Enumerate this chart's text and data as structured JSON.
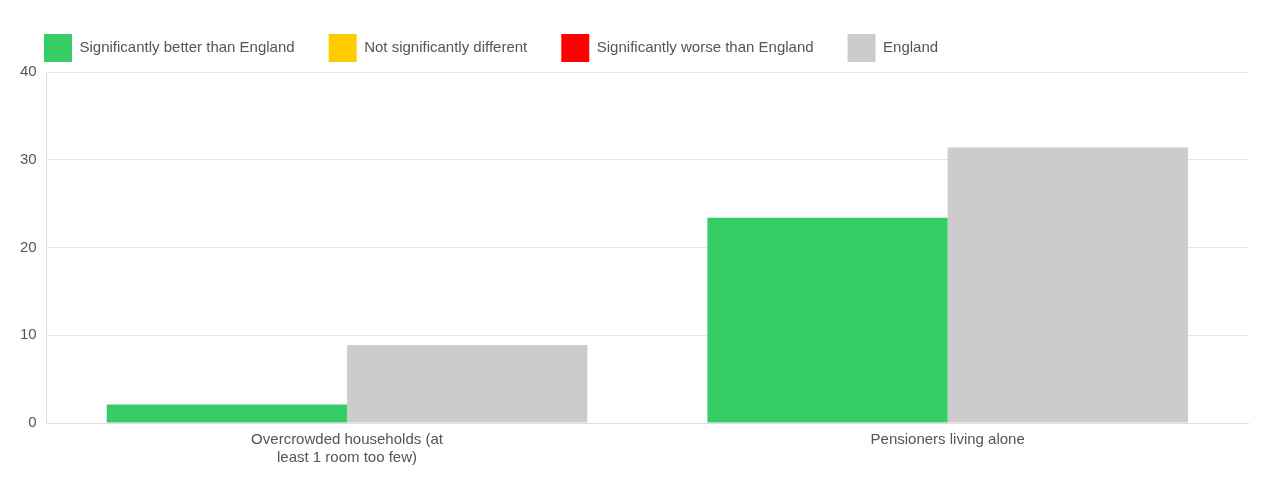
{
  "chart_data": {
    "type": "bar",
    "categories": [
      "Overcrowded households (at least 1 room too few)",
      "Pensioners living alone"
    ],
    "series": [
      {
        "name": "Significantly better than England",
        "color": "#36cc66",
        "values": [
          2.1,
          23.4
        ]
      },
      {
        "name": "Not significantly different",
        "color": "#ffcc00",
        "values": [
          null,
          null
        ]
      },
      {
        "name": "Significantly worse than England",
        "color": "#ff0000",
        "values": [
          null,
          null
        ]
      },
      {
        "name": "England",
        "color": "#cccccc",
        "values": [
          8.9,
          31.4
        ]
      }
    ],
    "ylim": [
      0,
      40
    ],
    "yticks": [
      0,
      10,
      20,
      30,
      40
    ],
    "grid": "y",
    "legend": "top"
  }
}
